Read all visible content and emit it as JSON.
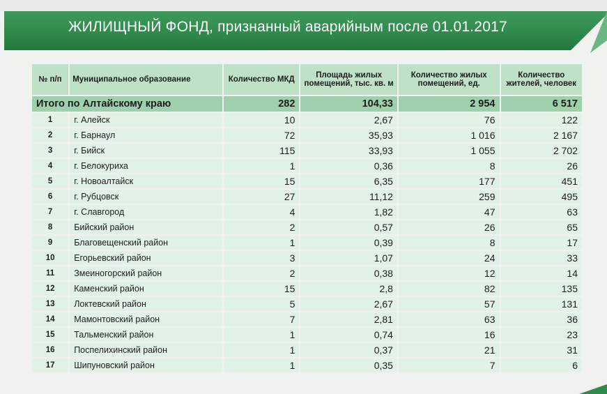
{
  "title": "ЖИЛИЩНЫЙ ФОНД, признанный аварийным после 01.01.2017",
  "columns": {
    "no": "№ п/п",
    "municipality": "Муниципальное образование",
    "mkd": "Количество МКД",
    "area": "Площадь жилых помещений, тыс. кв. м",
    "rooms": "Количество жилых помещений, ед.",
    "residents": "Количество жителей, человек"
  },
  "total": {
    "label": "Итого по Алтайскому краю",
    "mkd": "282",
    "area": "104,33",
    "rooms": "2 954",
    "residents": "6 517"
  },
  "rows": [
    {
      "no": "1",
      "name": "г. Алейск",
      "mkd": "10",
      "area": "2,67",
      "rooms": "76",
      "residents": "122"
    },
    {
      "no": "2",
      "name": "г. Барнаул",
      "mkd": "72",
      "area": "35,93",
      "rooms": "1 016",
      "residents": "2 167"
    },
    {
      "no": "3",
      "name": "г. Бийск",
      "mkd": "115",
      "area": "33,93",
      "rooms": "1 055",
      "residents": "2 702"
    },
    {
      "no": "4",
      "name": "г. Белокуриха",
      "mkd": "1",
      "area": "0,36",
      "rooms": "8",
      "residents": "26"
    },
    {
      "no": "5",
      "name": "г. Новоалтайск",
      "mkd": "15",
      "area": "6,35",
      "rooms": "177",
      "residents": "451"
    },
    {
      "no": "6",
      "name": "г. Рубцовск",
      "mkd": "27",
      "area": "11,12",
      "rooms": "259",
      "residents": "495"
    },
    {
      "no": "7",
      "name": "г. Славгород",
      "mkd": "4",
      "area": "1,82",
      "rooms": "47",
      "residents": "63"
    },
    {
      "no": "8",
      "name": "Бийский район",
      "mkd": "2",
      "area": "0,57",
      "rooms": "26",
      "residents": "65"
    },
    {
      "no": "9",
      "name": "Благовещенский район",
      "mkd": "1",
      "area": "0,39",
      "rooms": "8",
      "residents": "17"
    },
    {
      "no": "10",
      "name": "Егорьевский район",
      "mkd": "3",
      "area": "1,07",
      "rooms": "24",
      "residents": "33"
    },
    {
      "no": "11",
      "name": "Змеиногорский район",
      "mkd": "2",
      "area": "0,38",
      "rooms": "12",
      "residents": "14"
    },
    {
      "no": "12",
      "name": "Каменский район",
      "mkd": "15",
      "area": "2,8",
      "rooms": "82",
      "residents": "135"
    },
    {
      "no": "13",
      "name": "Локтевский район",
      "mkd": "5",
      "area": "2,67",
      "rooms": "57",
      "residents": "131"
    },
    {
      "no": "14",
      "name": "Мамонтовский район",
      "mkd": "7",
      "area": "2,81",
      "rooms": "63",
      "residents": "36"
    },
    {
      "no": "15",
      "name": "Тальменский район",
      "mkd": "1",
      "area": "0,74",
      "rooms": "16",
      "residents": "23"
    },
    {
      "no": "16",
      "name": "Поспелихинский район",
      "mkd": "1",
      "area": "0,37",
      "rooms": "21",
      "residents": "31"
    },
    {
      "no": "17",
      "name": "Шипуновский район",
      "mkd": "1",
      "area": "0,35",
      "rooms": "7",
      "residents": "6"
    }
  ],
  "colors": {
    "banner": "#2f8a4c",
    "header_cell": "#bfe1c8",
    "total_cell": "#9fd0ad",
    "body_cell": "#e3f2e7"
  }
}
